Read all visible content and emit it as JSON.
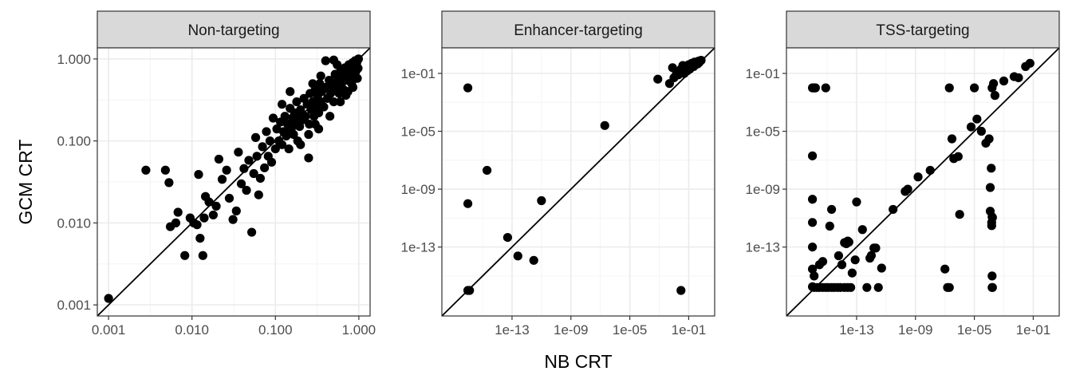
{
  "chart_data": {
    "type": "scatter",
    "xlabel": "NB CRT",
    "ylabel": "GCM CRT",
    "x_scale": "log10",
    "y_scale": "log10",
    "reference_line": "y = x",
    "grid": true,
    "legend": "none",
    "colors": {
      "point": "#000000",
      "strip_fill": "#d9d9d9",
      "strip_border": "#333333",
      "panel_border": "#333333",
      "grid_major": "#ebebeb",
      "grid_minor": "#f4f4f4",
      "ref_line": "#000000"
    },
    "panels": [
      {
        "title": "Non-targeting",
        "xlim": [
          0.001,
          1.0
        ],
        "ylim": [
          0.001,
          1.0
        ],
        "x_ticks": [
          0.001,
          0.01,
          0.1,
          1.0
        ],
        "x_tick_labels": [
          "0.001",
          "0.010",
          "0.100",
          "1.000"
        ],
        "y_ticks": [
          0.001,
          0.01,
          0.1,
          1.0
        ],
        "y_tick_labels": [
          "0.001",
          "0.010",
          "0.100",
          "1.000"
        ],
        "points": [
          [
            0.001,
            0.0012
          ],
          [
            0.0028,
            0.044
          ],
          [
            0.0048,
            0.044
          ],
          [
            0.0053,
            0.031
          ],
          [
            0.0055,
            0.009
          ],
          [
            0.0064,
            0.01
          ],
          [
            0.0068,
            0.0135
          ],
          [
            0.0082,
            0.004
          ],
          [
            0.0095,
            0.0115
          ],
          [
            0.0105,
            0.01
          ],
          [
            0.0115,
            0.0095
          ],
          [
            0.0125,
            0.0065
          ],
          [
            0.012,
            0.039
          ],
          [
            0.0135,
            0.004
          ],
          [
            0.014,
            0.0115
          ],
          [
            0.0145,
            0.021
          ],
          [
            0.016,
            0.018
          ],
          [
            0.018,
            0.0125
          ],
          [
            0.0195,
            0.016
          ],
          [
            0.021,
            0.06
          ],
          [
            0.023,
            0.034
          ],
          [
            0.026,
            0.044
          ],
          [
            0.028,
            0.02
          ],
          [
            0.031,
            0.011
          ],
          [
            0.034,
            0.014
          ],
          [
            0.036,
            0.073
          ],
          [
            0.039,
            0.03
          ],
          [
            0.042,
            0.046
          ],
          [
            0.045,
            0.025
          ],
          [
            0.048,
            0.058
          ],
          [
            0.052,
            0.0077
          ],
          [
            0.055,
            0.04
          ],
          [
            0.058,
            0.11
          ],
          [
            0.06,
            0.065
          ],
          [
            0.063,
            0.022
          ],
          [
            0.066,
            0.035
          ],
          [
            0.07,
            0.085
          ],
          [
            0.074,
            0.047
          ],
          [
            0.078,
            0.13
          ],
          [
            0.082,
            0.065
          ],
          [
            0.086,
            0.1
          ],
          [
            0.09,
            0.055
          ],
          [
            0.094,
            0.19
          ],
          [
            0.1,
            0.08
          ],
          [
            0.104,
            0.14
          ],
          [
            0.11,
            0.1
          ],
          [
            0.115,
            0.17
          ],
          [
            0.12,
            0.09
          ],
          [
            0.125,
            0.13
          ],
          [
            0.13,
            0.2
          ],
          [
            0.135,
            0.115
          ],
          [
            0.14,
            0.16
          ],
          [
            0.145,
            0.08
          ],
          [
            0.15,
            0.25
          ],
          [
            0.155,
            0.14
          ],
          [
            0.16,
            0.19
          ],
          [
            0.165,
            0.12
          ],
          [
            0.17,
            0.22
          ],
          [
            0.175,
            0.16
          ],
          [
            0.18,
            0.3
          ],
          [
            0.185,
            0.1
          ],
          [
            0.19,
            0.2
          ],
          [
            0.195,
            0.15
          ],
          [
            0.2,
            0.24
          ],
          [
            0.21,
            0.18
          ],
          [
            0.22,
            0.33
          ],
          [
            0.23,
            0.2
          ],
          [
            0.24,
            0.28
          ],
          [
            0.25,
            0.062
          ],
          [
            0.255,
            0.16
          ],
          [
            0.26,
            0.38
          ],
          [
            0.27,
            0.24
          ],
          [
            0.28,
            0.3
          ],
          [
            0.29,
            0.2
          ],
          [
            0.3,
            0.42
          ],
          [
            0.31,
            0.27
          ],
          [
            0.32,
            0.35
          ],
          [
            0.33,
            0.22
          ],
          [
            0.34,
            0.5
          ],
          [
            0.35,
            0.3
          ],
          [
            0.36,
            0.4
          ],
          [
            0.38,
            0.26
          ],
          [
            0.4,
            0.45
          ],
          [
            0.42,
            0.33
          ],
          [
            0.44,
            0.55
          ],
          [
            0.46,
            0.38
          ],
          [
            0.48,
            0.48
          ],
          [
            0.5,
            0.3
          ],
          [
            0.52,
            0.65
          ],
          [
            0.54,
            0.45
          ],
          [
            0.56,
            0.56
          ],
          [
            0.58,
            0.38
          ],
          [
            0.6,
            0.7
          ],
          [
            0.62,
            0.5
          ],
          [
            0.64,
            0.62
          ],
          [
            0.66,
            0.42
          ],
          [
            0.68,
            0.78
          ],
          [
            0.7,
            0.55
          ],
          [
            0.72,
            0.68
          ],
          [
            0.74,
            0.4
          ],
          [
            0.76,
            0.85
          ],
          [
            0.78,
            0.6
          ],
          [
            0.8,
            0.74
          ],
          [
            0.82,
            0.5
          ],
          [
            0.84,
            0.9
          ],
          [
            0.86,
            0.66
          ],
          [
            0.88,
            0.8
          ],
          [
            0.9,
            0.95
          ],
          [
            0.92,
            0.7
          ],
          [
            0.94,
            0.88
          ],
          [
            0.96,
            0.58
          ],
          [
            0.97,
            0.98
          ],
          [
            0.98,
            0.77
          ],
          [
            0.99,
            1.0
          ],
          [
            0.95,
            0.93
          ],
          [
            0.4,
            0.95
          ],
          [
            0.55,
            0.85
          ],
          [
            0.35,
            0.62
          ],
          [
            0.28,
            0.5
          ],
          [
            0.5,
            0.97
          ],
          [
            0.15,
            0.4
          ],
          [
            0.12,
            0.28
          ],
          [
            0.25,
            0.12
          ],
          [
            0.45,
            0.2
          ],
          [
            0.6,
            0.3
          ],
          [
            0.7,
            0.36
          ],
          [
            0.85,
            0.45
          ],
          [
            0.33,
            0.14
          ],
          [
            0.2,
            0.09
          ],
          [
            0.3,
            0.16
          ]
        ]
      },
      {
        "title": "Enhancer-targeting",
        "xlim": [
          1e-17,
          1.0
        ],
        "ylim": [
          1e-17,
          1.0
        ],
        "x_ticks": [
          1e-13,
          1e-09,
          1e-05,
          0.1
        ],
        "x_tick_labels": [
          "1e-13",
          "1e-09",
          "1e-05",
          "1e-01"
        ],
        "y_ticks": [
          1e-13,
          1e-09,
          1e-05,
          0.1
        ],
        "y_tick_labels": [
          "1e-13",
          "1e-09",
          "1e-05",
          "1e-01"
        ],
        "points": [
          [
            1e-16,
            0.01
          ],
          [
            1e-16,
            1e-10
          ],
          [
            1e-16,
            1e-16
          ],
          [
            1.3e-16,
            1e-16
          ],
          [
            2e-15,
            2e-08
          ],
          [
            5e-14,
            4.6e-13
          ],
          [
            2.5e-13,
            2.4e-14
          ],
          [
            3e-12,
            1.2e-14
          ],
          [
            1e-11,
            1.6e-10
          ],
          [
            2e-07,
            2.5e-05
          ],
          [
            0.0008,
            0.04
          ],
          [
            0.03,
            1e-16
          ],
          [
            0.005,
            0.02
          ],
          [
            0.008,
            0.25
          ],
          [
            0.01,
            0.05
          ],
          [
            0.015,
            0.1
          ],
          [
            0.02,
            0.08
          ],
          [
            0.025,
            0.15
          ],
          [
            0.03,
            0.2
          ],
          [
            0.035,
            0.12
          ],
          [
            0.04,
            0.35
          ],
          [
            0.05,
            0.1
          ],
          [
            0.06,
            0.2
          ],
          [
            0.07,
            0.3
          ],
          [
            0.08,
            0.15
          ],
          [
            0.09,
            0.25
          ],
          [
            0.1,
            0.4
          ],
          [
            0.12,
            0.2
          ],
          [
            0.14,
            0.3
          ],
          [
            0.16,
            0.5
          ],
          [
            0.18,
            0.35
          ],
          [
            0.2,
            0.45
          ],
          [
            0.22,
            0.3
          ],
          [
            0.25,
            0.6
          ],
          [
            0.28,
            0.4
          ],
          [
            0.3,
            0.5
          ],
          [
            0.35,
            0.6
          ],
          [
            0.4,
            0.45
          ],
          [
            0.45,
            0.7
          ],
          [
            0.5,
            0.55
          ],
          [
            0.6,
            0.75
          ],
          [
            0.7,
            0.8
          ]
        ]
      },
      {
        "title": "TSS-targeting",
        "xlim": [
          1e-17,
          1.0
        ],
        "ylim": [
          1e-17,
          1.0
        ],
        "x_ticks": [
          1e-13,
          1e-09,
          1e-05,
          0.1
        ],
        "x_tick_labels": [
          "1e-13",
          "1e-09",
          "1e-05",
          "1e-01"
        ],
        "y_ticks": [
          1e-13,
          1e-09,
          1e-05,
          0.1
        ],
        "y_tick_labels": [
          "1e-13",
          "1e-09",
          "1e-05",
          "1e-01"
        ],
        "points": [
          [
            1e-16,
            0.01
          ],
          [
            1.2e-16,
            0.01
          ],
          [
            1.4e-16,
            0.01
          ],
          [
            1.6e-16,
            0.01
          ],
          [
            8e-16,
            0.01
          ],
          [
            1e-16,
            2e-07
          ],
          [
            1e-16,
            2e-10
          ],
          [
            1e-16,
            5e-12
          ],
          [
            1e-16,
            1e-13
          ],
          [
            1e-16,
            3e-15
          ],
          [
            1.3e-16,
            1e-15
          ],
          [
            1e-16,
            1.8e-16
          ],
          [
            1.3e-16,
            1.6e-16
          ],
          [
            2e-16,
            1.6e-16
          ],
          [
            3e-16,
            1.6e-16
          ],
          [
            5e-16,
            1.6e-16
          ],
          [
            8e-16,
            1.6e-16
          ],
          [
            1.2e-15,
            1.6e-16
          ],
          [
            2e-15,
            1.6e-16
          ],
          [
            3e-15,
            1.6e-16
          ],
          [
            5e-15,
            1.6e-16
          ],
          [
            8e-15,
            1.6e-16
          ],
          [
            1.5e-14,
            1.6e-16
          ],
          [
            2.5e-14,
            1.6e-16
          ],
          [
            4e-14,
            1.6e-16
          ],
          [
            3e-16,
            6e-15
          ],
          [
            5e-16,
            1e-14
          ],
          [
            1.5e-15,
            2.8e-12
          ],
          [
            2e-15,
            4e-11
          ],
          [
            6e-15,
            2.5e-14
          ],
          [
            1e-14,
            6e-15
          ],
          [
            1.5e-14,
            2e-13
          ],
          [
            2e-14,
            1.7e-13
          ],
          [
            2.5e-14,
            2.6e-13
          ],
          [
            3e-14,
            2.2e-13
          ],
          [
            5e-14,
            1.6e-15
          ],
          [
            8e-14,
            1.3e-14
          ],
          [
            1e-13,
            1.3e-10
          ],
          [
            2.5e-13,
            1.6e-12
          ],
          [
            5e-13,
            1.6e-16
          ],
          [
            8e-13,
            1.7e-14
          ],
          [
            1e-12,
            2.6e-14
          ],
          [
            1.5e-12,
            8.5e-14
          ],
          [
            2e-12,
            8.5e-14
          ],
          [
            3e-12,
            1.6e-16
          ],
          [
            5e-12,
            3.5e-15
          ],
          [
            3e-11,
            4e-11
          ],
          [
            2e-10,
            7e-10
          ],
          [
            3e-10,
            1e-09
          ],
          [
            1.5e-09,
            7e-09
          ],
          [
            1e-08,
            2e-08
          ],
          [
            1e-07,
            3e-15
          ],
          [
            1.5e-07,
            1.6e-16
          ],
          [
            2e-07,
            1.6e-16
          ],
          [
            3e-07,
            3e-06
          ],
          [
            2e-07,
            0.01
          ],
          [
            4e-07,
            1.3e-07
          ],
          [
            8e-07,
            1.8e-07
          ],
          [
            1e-06,
            1.8e-11
          ],
          [
            6e-06,
            2e-05
          ],
          [
            1e-05,
            0.01
          ],
          [
            1.5e-05,
            7e-05
          ],
          [
            3e-05,
            1e-05
          ],
          [
            6e-05,
            1.5e-06
          ],
          [
            0.0001,
            3e-06
          ],
          [
            0.00012,
            1.3e-09
          ],
          [
            0.00014,
            2.8e-08
          ],
          [
            0.00012,
            3e-11
          ],
          [
            0.00015,
            5e-12
          ],
          [
            0.00016,
            1.2e-11
          ],
          [
            0.00017,
            1.1e-11
          ],
          [
            0.00015,
            3e-12
          ],
          [
            0.00016,
            1e-15
          ],
          [
            0.00016,
            1.6e-16
          ],
          [
            0.00017,
            1.6e-16
          ],
          [
            0.00016,
            0.01
          ],
          [
            0.0002,
            0.02
          ],
          [
            0.00025,
            0.003
          ],
          [
            0.001,
            0.03
          ],
          [
            0.01,
            0.05
          ],
          [
            0.005,
            0.06
          ],
          [
            0.03,
            0.3
          ],
          [
            0.06,
            0.5
          ]
        ]
      }
    ]
  }
}
